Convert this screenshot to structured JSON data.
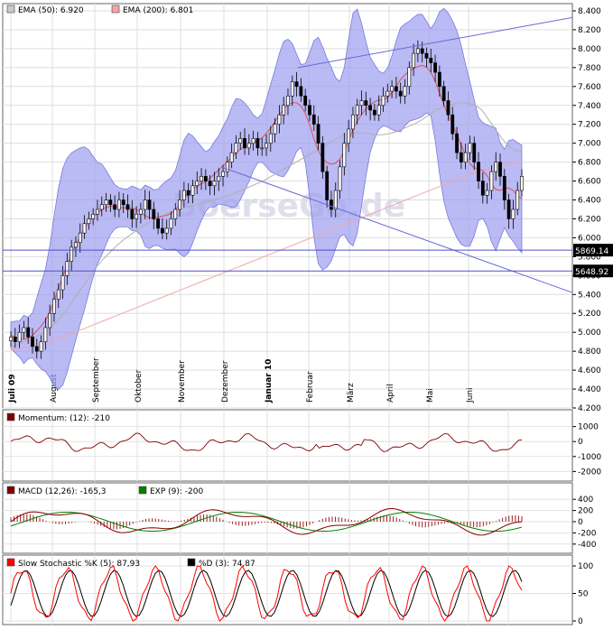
{
  "chart_data": [
    {
      "type": "candlestick",
      "legend": [
        {
          "label": "EMA (50): 6.920",
          "color": "#c9c9c9"
        },
        {
          "label": "EMA (200): 6.801",
          "color": "#f3a6a6"
        }
      ],
      "y_ticks": [
        "8.400",
        "8.200",
        "8.000",
        "7.800",
        "7.600",
        "7.400",
        "7.200",
        "7.000",
        "6.800",
        "6.600",
        "6.400",
        "6.200",
        "6.000",
        "5.800",
        "5.600",
        "5.400",
        "5.200",
        "5.000",
        "4.800",
        "4.600",
        "4.400",
        "4.200"
      ],
      "ylim": [
        4200,
        8400
      ],
      "x_labels": [
        {
          "label": "Juli 09",
          "bold": true
        },
        {
          "label": "August"
        },
        {
          "label": "September"
        },
        {
          "label": "Oktober"
        },
        {
          "label": "November"
        },
        {
          "label": "Dezember"
        },
        {
          "label": "Januar 10",
          "bold": true
        },
        {
          "label": "Februar"
        },
        {
          "label": "März"
        },
        {
          "label": "April"
        },
        {
          "label": "Mai"
        },
        {
          "label": "Juni"
        }
      ],
      "price_labels": [
        {
          "label": "5869.14",
          "value": 5869.14
        },
        {
          "label": "5648.92",
          "value": 5648.92
        }
      ],
      "watermark": "BoerseGo.de",
      "close_series": [
        4950,
        4900,
        5000,
        5050,
        4950,
        4850,
        4800,
        4900,
        5050,
        5200,
        5350,
        5450,
        5600,
        5750,
        5900,
        5950,
        6050,
        6150,
        6200,
        6250,
        6300,
        6350,
        6400,
        6350,
        6300,
        6400,
        6350,
        6300,
        6200,
        6250,
        6300,
        6400,
        6300,
        6200,
        6100,
        6050,
        6100,
        6200,
        6300,
        6400,
        6500,
        6450,
        6550,
        6600,
        6650,
        6600,
        6550,
        6600,
        6650,
        6700,
        6800,
        6900,
        7000,
        7050,
        6950,
        7000,
        7050,
        6950,
        6950,
        7000,
        7100,
        7200,
        7300,
        7400,
        7500,
        7650,
        7600,
        7500,
        7400,
        7300,
        7200,
        7000,
        6700,
        6400,
        6300,
        6500,
        6750,
        7000,
        7150,
        7300,
        7400,
        7450,
        7400,
        7350,
        7300,
        7400,
        7500,
        7550,
        7600,
        7550,
        7500,
        7600,
        7800,
        7950,
        8000,
        7950,
        7900,
        7850,
        7750,
        7600,
        7450,
        7300,
        7100,
        6900,
        6800,
        6900,
        7000,
        6800,
        6600,
        6450,
        6500,
        6700,
        6800,
        6650,
        6400,
        6200,
        6300,
        6500,
        6650
      ],
      "ema50": [
        4850,
        4870,
        4900,
        4930,
        4960,
        5000,
        5050,
        5120,
        5200,
        5300,
        5400,
        5500,
        5600,
        5700,
        5780,
        5850,
        5920,
        5980,
        6030,
        6080,
        6130,
        6170,
        6210,
        6240,
        6270,
        6290,
        6310,
        6330,
        6350,
        6370,
        6390,
        6410,
        6430,
        6450,
        6480,
        6510,
        6540,
        6570,
        6600,
        6640,
        6680,
        6720,
        6760,
        6800,
        6840,
        6880,
        6920,
        6960,
        7000,
        7040,
        7080,
        7100,
        7110,
        7110,
        7100,
        7090,
        7090,
        7100,
        7120,
        7150,
        7180,
        7210,
        7250,
        7300,
        7350,
        7380,
        7400,
        7420,
        7430,
        7420,
        7400,
        7350,
        7250,
        7150,
        7050,
        6970,
        6920,
        6920
      ],
      "ema200": [
        4820,
        4830,
        4840,
        4860,
        4880,
        4900,
        4920,
        4940,
        4970,
        5000,
        5030,
        5060,
        5090,
        5120,
        5150,
        5180,
        5210,
        5240,
        5270,
        5300,
        5330,
        5360,
        5390,
        5420,
        5450,
        5480,
        5510,
        5540,
        5570,
        5600,
        5630,
        5660,
        5690,
        5720,
        5750,
        5780,
        5810,
        5840,
        5870,
        5900,
        5930,
        5960,
        5990,
        6020,
        6050,
        6080,
        6110,
        6140,
        6170,
        6200,
        6230,
        6260,
        6290,
        6320,
        6350,
        6380,
        6410,
        6440,
        6470,
        6500,
        6530,
        6560,
        6590,
        6620,
        6650,
        6680,
        6700,
        6720,
        6740,
        6760,
        6780,
        6800,
        6801
      ]
    },
    {
      "type": "line",
      "legend": [
        {
          "label": "Momentum: (12): -210",
          "color": "#800000"
        }
      ],
      "y_ticks": [
        "1000",
        "0",
        "-1000",
        "-2000"
      ],
      "ylim": [
        -2400,
        1400
      ]
    },
    {
      "type": "line",
      "legend": [
        {
          "label": "MACD (12,26): -165,3",
          "color": "#800000"
        },
        {
          "label": "EXP (9): -200",
          "color": "#008000"
        }
      ],
      "y_ticks": [
        "400",
        "200",
        "0",
        "-200",
        "-400"
      ],
      "ylim": [
        -500,
        500
      ]
    },
    {
      "type": "line",
      "legend": [
        {
          "label": "Slow Stochastic %K (5): 87,93",
          "color": "#ff0000"
        },
        {
          "label": "%D (3): 74,87",
          "color": "#000000"
        }
      ],
      "y_ticks": [
        "100",
        "50",
        "0"
      ],
      "ylim": [
        0,
        100
      ]
    }
  ]
}
